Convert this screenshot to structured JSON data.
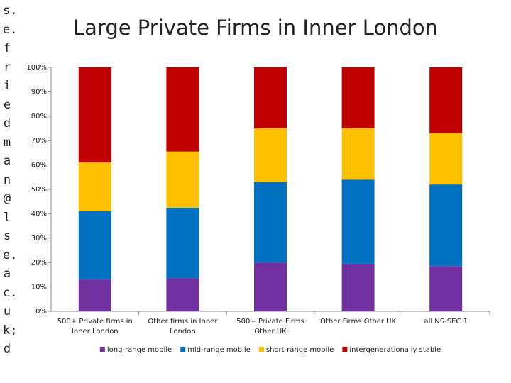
{
  "side_text": "s.e.friedman@lse.ac.uk; d",
  "chart_data": {
    "type": "stacked_bar",
    "title": "Large Private Firms in Inner London",
    "categories": [
      "500+ Private firms in Inner London",
      "Other firms in Inner London",
      "500+ Private Firms Other UK",
      "Other Firms Other UK",
      "all NS-SEC 1"
    ],
    "series": [
      {
        "name": "long-range mobile",
        "color": "#7030a0",
        "values": [
          13,
          13.5,
          20,
          19.5,
          18.5
        ]
      },
      {
        "name": "mid-range mobile",
        "color": "#0070c0",
        "values": [
          28,
          29,
          33,
          34.5,
          33.5
        ]
      },
      {
        "name": "short-range mobile",
        "color": "#ffc000",
        "values": [
          20,
          23,
          22,
          21,
          21
        ]
      },
      {
        "name": "intergenerationally stable",
        "color": "#c00000",
        "values": [
          39,
          34.5,
          25,
          25,
          27
        ]
      }
    ],
    "ylim": [
      0,
      100
    ],
    "yticks": [
      {
        "value": 0,
        "label": "0%"
      },
      {
        "value": 10,
        "label": "10%"
      },
      {
        "value": 20,
        "label": "20%"
      },
      {
        "value": 30,
        "label": "30%"
      },
      {
        "value": 40,
        "label": "40%"
      },
      {
        "value": 50,
        "label": "50%"
      },
      {
        "value": 60,
        "label": "60%"
      },
      {
        "value": 70,
        "label": "70%"
      },
      {
        "value": 80,
        "label": "80%"
      },
      {
        "value": 90,
        "label": "90%"
      },
      {
        "value": 100,
        "label": "100%"
      }
    ],
    "legend": "bottom"
  }
}
